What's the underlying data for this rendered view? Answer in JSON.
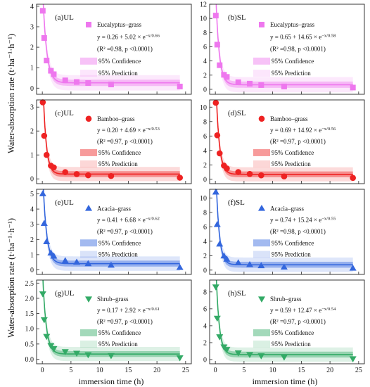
{
  "y_axis_label_top": "Water-absorption rate  (t·ha⁻¹·h⁻¹)",
  "y_axis_label_bottom": "Water-absorption rate  (t·ha⁻¹·h⁻¹)",
  "x_axis_label_left": "immersion time (h)",
  "x_axis_label_right": "immersion time (h)",
  "chart_data": [
    {
      "type": "scatter",
      "panel": "(a)UL",
      "series": "Eucalyptus–grass",
      "equation": "y = 0.26 + 5.02 × e",
      "exponent": "−x/0.66",
      "stats": "(R² =0.98, p <0.0001)",
      "confidence_label": "95% Confidence",
      "prediction_label": "95% Prediction",
      "color": "#ee77ee",
      "marker": "square",
      "fit": {
        "y0": 0.26,
        "A": 5.02,
        "t": 0.66
      },
      "x": [
        0.08,
        0.33,
        0.75,
        1.5,
        2.0,
        4.0,
        6.0,
        8.0,
        12.0,
        24.0
      ],
      "y": [
        3.78,
        2.45,
        1.35,
        0.85,
        0.68,
        0.38,
        0.3,
        0.25,
        0.18,
        0.08
      ],
      "xlim": [
        -1,
        26
      ],
      "ylim": [
        -0.3,
        4.1
      ],
      "yticks": [
        0,
        1,
        2,
        3,
        4
      ],
      "xticks": [
        0,
        5,
        10,
        15,
        20,
        25
      ]
    },
    {
      "type": "scatter",
      "panel": "(b)SL",
      "series": "Eucalyptus–grass",
      "equation": "y = 0.65 + 14.65 × e",
      "exponent": "−x/0.58",
      "stats": "(R² =0.98, p <0.0001)",
      "confidence_label": "95% Confidence",
      "prediction_label": "95% Prediction",
      "color": "#ee77ee",
      "marker": "square",
      "fit": {
        "y0": 0.65,
        "A": 14.65,
        "t": 0.58
      },
      "x": [
        0.08,
        0.33,
        0.75,
        1.5,
        2.0,
        4.0,
        6.0,
        8.0,
        12.0,
        24.0
      ],
      "y": [
        10.4,
        6.3,
        3.4,
        2.05,
        1.75,
        1.0,
        0.8,
        0.6,
        0.4,
        0.25
      ],
      "xlim": [
        -1,
        26
      ],
      "ylim": [
        -0.7,
        12.0
      ],
      "yticks": [
        0,
        2,
        4,
        6,
        8,
        10,
        12
      ],
      "xticks": [
        0,
        5,
        10,
        15,
        20,
        25
      ]
    },
    {
      "type": "scatter",
      "panel": "(c)UL",
      "series": "Bamboo–grass",
      "equation": "y = 0.20 + 4.69 × e",
      "exponent": "−x/0.53",
      "stats": "(R² =0.97, p <0.0001)",
      "confidence_label": "95% Confidence",
      "prediction_label": "95% Prediction",
      "color": "#ee2222",
      "marker": "circle",
      "fit": {
        "y0": 0.2,
        "A": 4.69,
        "t": 0.53
      },
      "x": [
        0.08,
        0.33,
        0.75,
        1.5,
        2.0,
        4.0,
        6.0,
        8.0,
        12.0,
        24.0
      ],
      "y": [
        3.2,
        1.8,
        1.0,
        0.55,
        0.48,
        0.28,
        0.2,
        0.15,
        0.12,
        0.05
      ],
      "xlim": [
        -1,
        26
      ],
      "ylim": [
        -0.2,
        3.3
      ],
      "yticks": [
        0,
        1,
        2,
        3
      ],
      "xticks": [
        0,
        5,
        10,
        15,
        20,
        25
      ]
    },
    {
      "type": "scatter",
      "panel": "(d)SL",
      "series": "Bamboo–grass",
      "equation": "y = 0.69 + 14.92 × e",
      "exponent": "−x/0.56",
      "stats": "(R² =0.97, p <0.0001)",
      "confidence_label": "95% Confidence",
      "prediction_label": "95% Prediction",
      "color": "#ee2222",
      "marker": "circle",
      "fit": {
        "y0": 0.69,
        "A": 14.92,
        "t": 0.56
      },
      "x": [
        0.08,
        0.33,
        0.75,
        1.5,
        2.0,
        4.0,
        6.0,
        8.0,
        12.0,
        24.0
      ],
      "y": [
        10.6,
        6.1,
        3.6,
        1.9,
        1.5,
        1.0,
        0.75,
        0.55,
        0.4,
        0.2
      ],
      "xlim": [
        -1,
        26
      ],
      "ylim": [
        -0.6,
        11.0
      ],
      "yticks": [
        0,
        2,
        4,
        6,
        8,
        10
      ],
      "xticks": [
        0,
        5,
        10,
        15,
        20,
        25
      ]
    },
    {
      "type": "scatter",
      "panel": "(e)UL",
      "series": "Acacia–grass",
      "equation": "y = 0.41 + 6.68 × e",
      "exponent": "−x/0.62",
      "stats": "(R² =0.97, p <0.0001)",
      "confidence_label": "95% Confidence",
      "prediction_label": "95% Prediction",
      "color": "#3366dd",
      "marker": "triangle-up",
      "fit": {
        "y0": 0.41,
        "A": 6.68,
        "t": 0.62
      },
      "x": [
        0.08,
        0.33,
        0.75,
        1.5,
        2.0,
        4.0,
        6.0,
        8.0,
        12.0,
        24.0
      ],
      "y": [
        5.0,
        3.05,
        1.85,
        1.1,
        0.9,
        0.6,
        0.5,
        0.4,
        0.3,
        0.15
      ],
      "xlim": [
        -1,
        26
      ],
      "ylim": [
        -0.3,
        5.3
      ],
      "yticks": [
        0,
        1,
        2,
        3,
        4,
        5
      ],
      "xticks": [
        0,
        5,
        10,
        15,
        20,
        25
      ]
    },
    {
      "type": "scatter",
      "panel": "(f)SL",
      "series": "Acacia–grass",
      "equation": "y = 0.74 + 15.24 × e",
      "exponent": "−x/0.55",
      "stats": "(R² =0.98, p <0.0001)",
      "confidence_label": "95% Confidence",
      "prediction_label": "95% Prediction",
      "color": "#3366dd",
      "marker": "triangle-up",
      "fit": {
        "y0": 0.74,
        "A": 15.24,
        "t": 0.55
      },
      "x": [
        0.08,
        0.33,
        0.75,
        1.5,
        2.0,
        4.0,
        6.0,
        8.0,
        12.0,
        24.0
      ],
      "y": [
        10.8,
        6.3,
        3.6,
        1.95,
        1.5,
        1.0,
        0.75,
        0.6,
        0.4,
        0.25
      ],
      "xlim": [
        -1,
        26
      ],
      "ylim": [
        -0.6,
        11.2
      ],
      "yticks": [
        0,
        2,
        4,
        6,
        8,
        10
      ],
      "xticks": [
        0,
        5,
        10,
        15,
        20,
        25
      ]
    },
    {
      "type": "scatter",
      "panel": "(g)UL",
      "series": "Shrub–grass",
      "equation": "y = 0.17 + 2.92 × e",
      "exponent": "−x/0.61",
      "stats": "(R² =0.97, p <0.0001)",
      "confidence_label": "95% Confidence",
      "prediction_label": "95% Prediction",
      "color": "#33aa66",
      "marker": "triangle-down",
      "fit": {
        "y0": 0.17,
        "A": 2.92,
        "t": 0.61
      },
      "x": [
        0.08,
        0.33,
        0.75,
        1.5,
        2.0,
        4.0,
        6.0,
        8.0,
        12.0,
        24.0
      ],
      "y": [
        2.15,
        1.3,
        0.75,
        0.45,
        0.35,
        0.25,
        0.2,
        0.15,
        0.12,
        0.05
      ],
      "xlim": [
        -1,
        26
      ],
      "ylim": [
        -0.15,
        2.6
      ],
      "yticks": [
        0.0,
        0.5,
        1.0,
        1.5,
        2.0,
        2.5
      ],
      "xticks": [
        0,
        5,
        10,
        15,
        20,
        25
      ]
    },
    {
      "type": "scatter",
      "panel": "(h)SL",
      "series": "Shrub–grass",
      "equation": "y = 0.59 + 12.47 × e",
      "exponent": "−x/0.54",
      "stats": "(R² =0.97, p <0.0001)",
      "confidence_label": "95% Confidence",
      "prediction_label": "95% Prediction",
      "color": "#33aa66",
      "marker": "triangle-down",
      "fit": {
        "y0": 0.59,
        "A": 12.47,
        "t": 0.54
      },
      "x": [
        0.08,
        0.33,
        0.75,
        1.5,
        2.0,
        4.0,
        6.0,
        8.0,
        12.0,
        24.0
      ],
      "y": [
        8.6,
        4.9,
        2.7,
        1.5,
        1.2,
        0.8,
        0.6,
        0.45,
        0.3,
        0.1
      ],
      "xlim": [
        -1,
        26
      ],
      "ylim": [
        -0.5,
        9.4
      ],
      "yticks": [
        0,
        2,
        4,
        6,
        8
      ],
      "xticks": [
        0,
        5,
        10,
        15,
        20,
        25
      ]
    }
  ]
}
